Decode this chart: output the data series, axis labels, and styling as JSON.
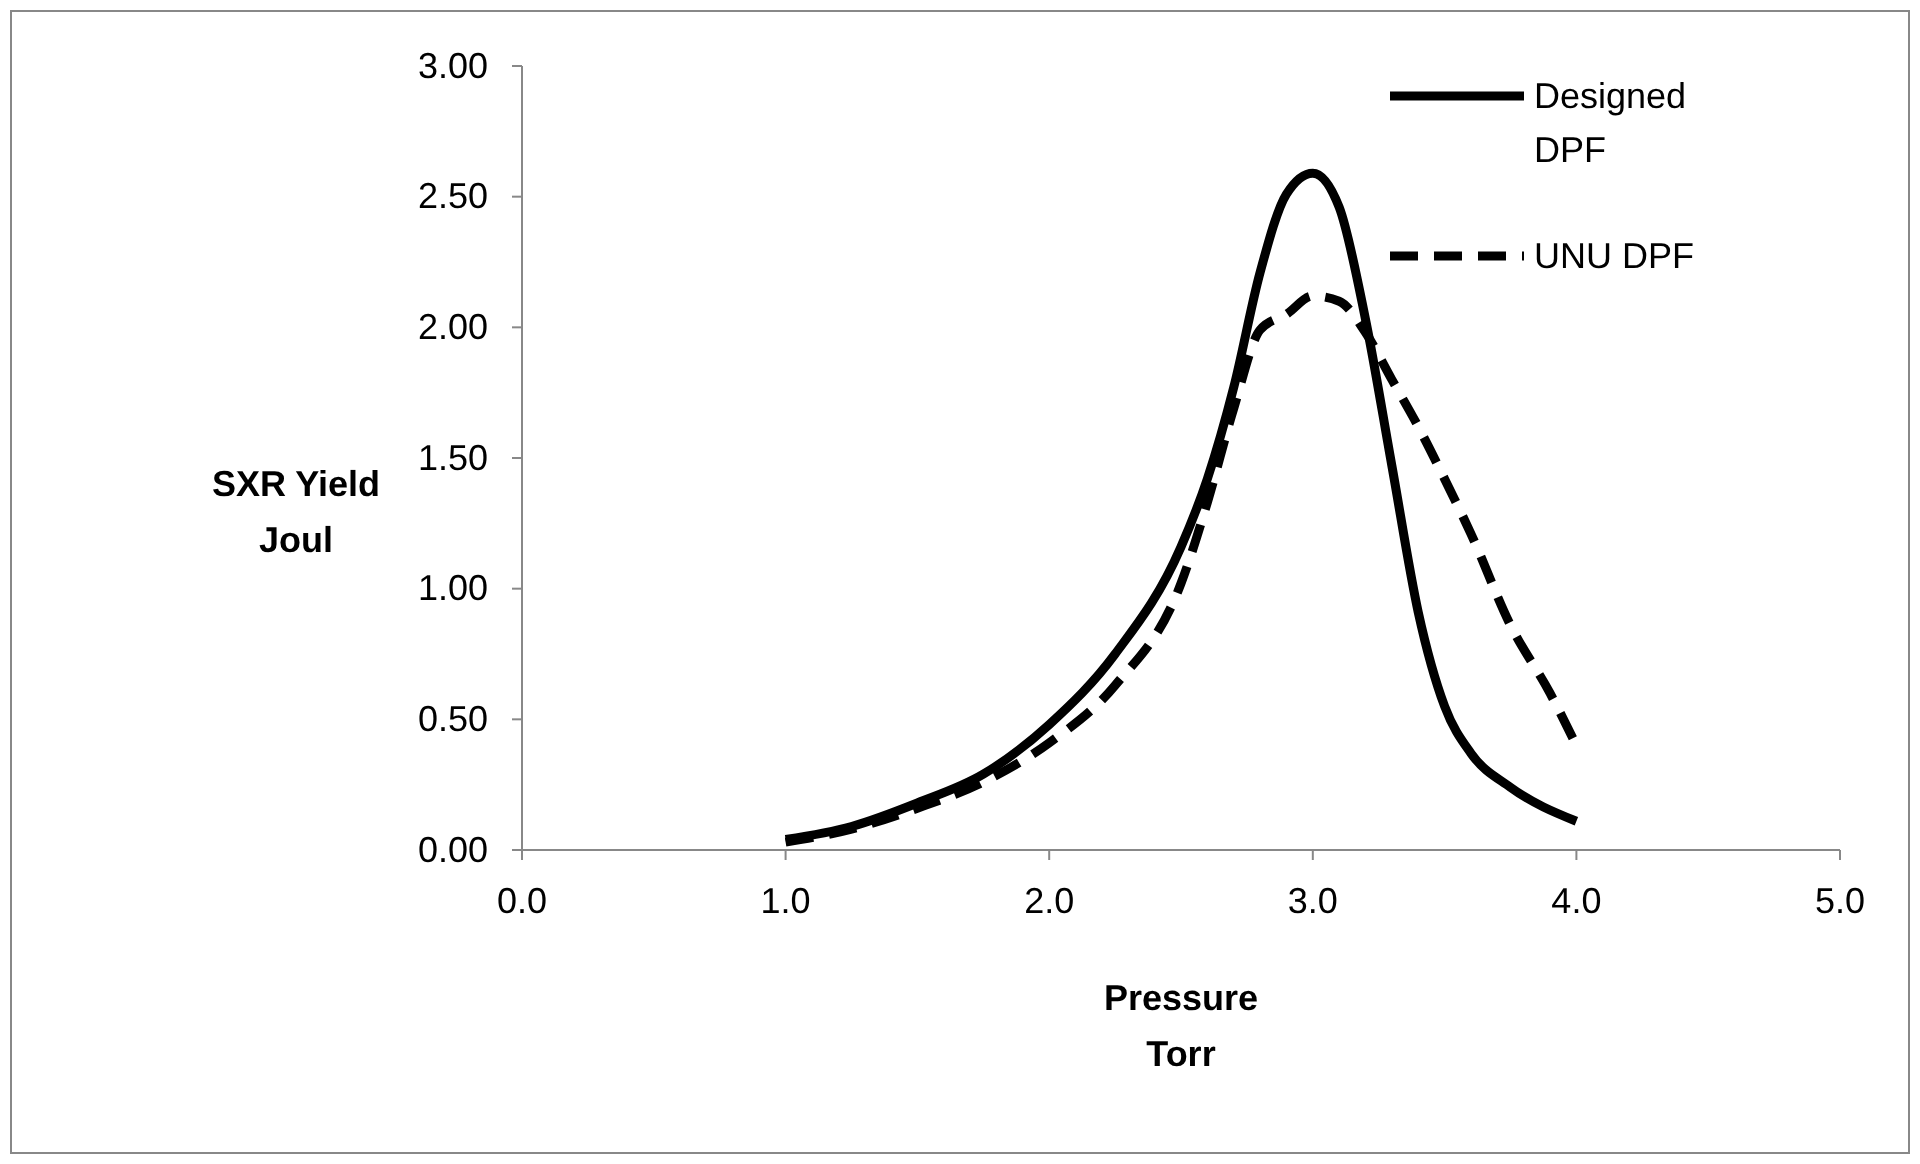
{
  "chart_data": {
    "type": "line",
    "xlabel": "Pressure\nTorr",
    "ylabel": "SXR Yield\nJoul",
    "xlim": [
      0,
      5
    ],
    "xticks": [
      {
        "value": 0,
        "label": "0.0"
      },
      {
        "value": 1,
        "label": "1.0"
      },
      {
        "value": 2,
        "label": "2.0"
      },
      {
        "value": 3,
        "label": "3.0"
      },
      {
        "value": 4,
        "label": "4.0"
      },
      {
        "value": 5,
        "label": "5.0"
      }
    ],
    "ylim": [
      0,
      3
    ],
    "yticks": [
      {
        "value": 0,
        "label": "0.00"
      },
      {
        "value": 0.5,
        "label": "0.50"
      },
      {
        "value": 1,
        "label": "1.00"
      },
      {
        "value": 1.5,
        "label": "1.50"
      },
      {
        "value": 2,
        "label": "2.00"
      },
      {
        "value": 2.5,
        "label": "2.50"
      },
      {
        "value": 3,
        "label": "3.00"
      }
    ],
    "grid": false,
    "legend": "top right",
    "marker": "none",
    "series": [
      {
        "name": "Designed DPF",
        "color": "#000000",
        "line_style": "solid",
        "x": [
          1,
          1.25,
          1.5,
          1.75,
          2,
          2.25,
          2.5,
          2.6,
          2.7,
          2.8,
          2.9,
          3,
          3.1,
          3.2,
          3.3,
          3.4,
          3.5,
          3.6,
          3.75,
          4
        ],
        "values": [
          0.04,
          0.09,
          0.18,
          0.29,
          0.48,
          0.75,
          1.16,
          1.42,
          1.77,
          2.21,
          2.51,
          2.59,
          2.46,
          2.03,
          1.47,
          0.91,
          0.55,
          0.37,
          0.24,
          0.11
        ]
      },
      {
        "name": "UNU DPF",
        "color": "#000000",
        "line_style": "dashed",
        "x": [
          1,
          1.25,
          1.5,
          1.75,
          2,
          2.25,
          2.5,
          2.6,
          2.7,
          2.8,
          2.9,
          3,
          3.1,
          3.2,
          3.3,
          3.4,
          3.5,
          3.6,
          3.75,
          3.9,
          4
        ],
        "values": [
          0.03,
          0.08,
          0.16,
          0.26,
          0.41,
          0.63,
          1.02,
          1.33,
          1.69,
          1.99,
          2.05,
          2.12,
          2.1,
          1.98,
          1.8,
          1.62,
          1.42,
          1.21,
          0.86,
          0.6,
          0.4
        ]
      }
    ]
  }
}
